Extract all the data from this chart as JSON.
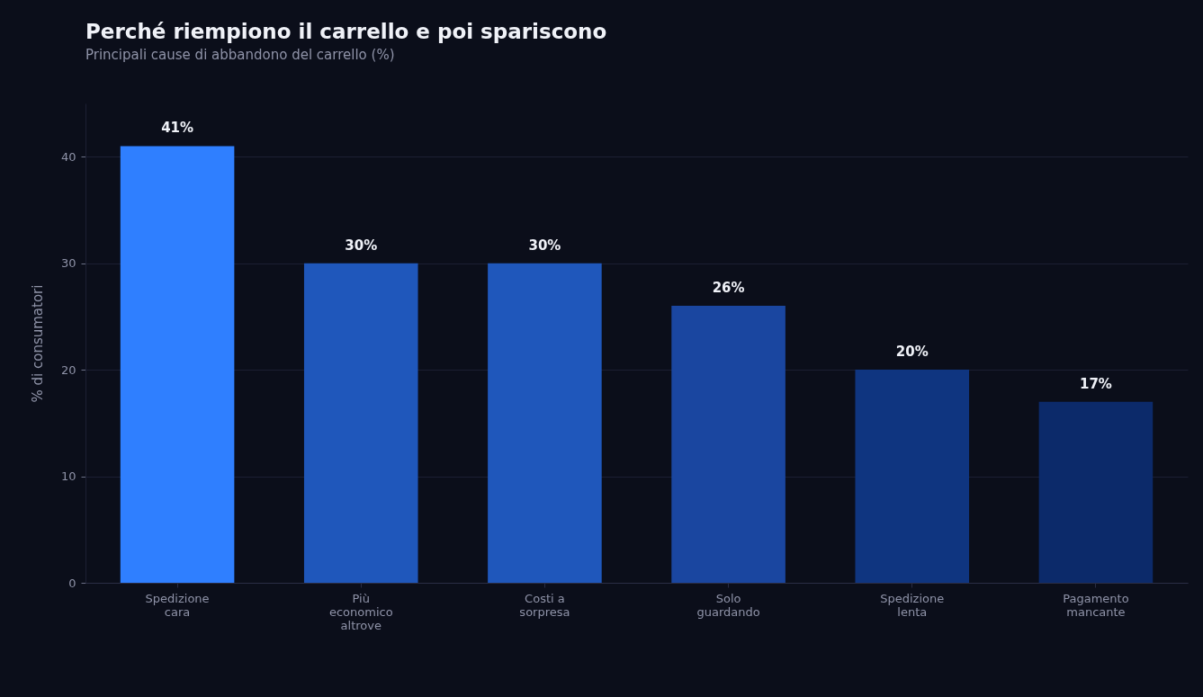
{
  "chart_data": {
    "type": "bar",
    "title": "Perché riempiono il carrello e poi spariscono",
    "subtitle": "Principali cause di abbandono del carrello (%)",
    "ylabel": "% di consumatori",
    "categories": [
      "Spedizione\ncara",
      "Più\neconomico\naltrove",
      "Costi a\nsorpresa",
      "Solo\nguardando",
      "Spedizione\nlenta",
      "Pagamento\nmancante"
    ],
    "values": [
      41,
      30,
      30,
      26,
      20,
      17
    ],
    "colors": [
      "#2f7fff",
      "#1f57bb",
      "#1f57bb",
      "#1a46a0",
      "#0f3580",
      "#0c2a6a"
    ],
    "value_labels": [
      "41%",
      "30%",
      "30%",
      "26%",
      "20%",
      "17%"
    ],
    "ylim": [
      0,
      45
    ],
    "yticks": [
      0,
      10,
      20,
      30,
      40
    ],
    "grid": "y"
  }
}
